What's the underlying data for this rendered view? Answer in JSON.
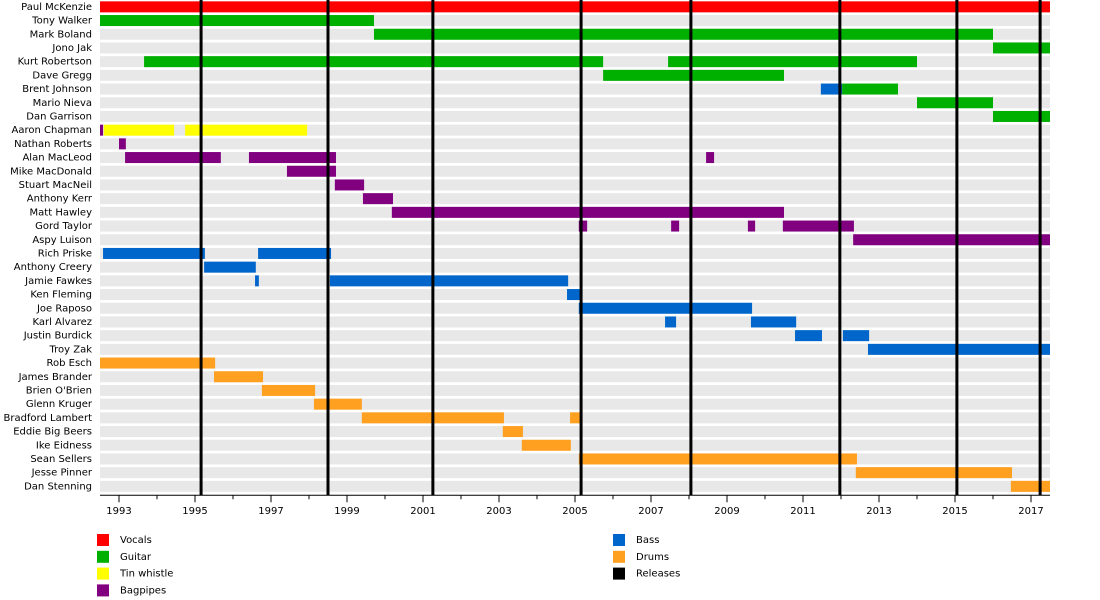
{
  "chart_data": {
    "type": "timeline",
    "xlim": [
      1992.5,
      2017.5
    ],
    "xticks": [
      1993,
      1995,
      1997,
      1999,
      2001,
      2003,
      2005,
      2007,
      2009,
      2011,
      2013,
      2015,
      2017
    ],
    "roles": [
      {
        "name": "Vocals",
        "color": "#ff0000"
      },
      {
        "name": "Guitar",
        "color": "#00b000"
      },
      {
        "name": "Tin whistle",
        "color": "#ffff00"
      },
      {
        "name": "Bagpipes",
        "color": "#800080"
      },
      {
        "name": "Bass",
        "color": "#0066cc"
      },
      {
        "name": "Drums",
        "color": "#ffa020"
      }
    ],
    "releases": {
      "name": "Releases",
      "color": "#000000",
      "x": [
        1995.16,
        1998.5,
        2001.26,
        2005.16,
        2008.05,
        2011.97,
        2015.05,
        2017.24
      ]
    },
    "members": [
      {
        "name": "Paul McKenzie",
        "spans": [
          {
            "role": "Vocals",
            "start": 1992.5,
            "end": 2017.5
          }
        ]
      },
      {
        "name": "Tony Walker",
        "spans": [
          {
            "role": "Guitar",
            "start": 1992.5,
            "end": 1999.71
          }
        ]
      },
      {
        "name": "Mark Boland",
        "spans": [
          {
            "role": "Guitar",
            "start": 1999.71,
            "end": 2016.0
          }
        ]
      },
      {
        "name": "Jono Jak",
        "spans": [
          {
            "role": "Guitar",
            "start": 2016.0,
            "end": 2017.5
          }
        ]
      },
      {
        "name": "Kurt Robertson",
        "spans": [
          {
            "role": "Guitar",
            "start": 1993.66,
            "end": 2005.74
          },
          {
            "role": "Guitar",
            "start": 2007.45,
            "end": 2014.0
          }
        ]
      },
      {
        "name": "Dave Gregg",
        "spans": [
          {
            "role": "Guitar",
            "start": 2005.74,
            "end": 2010.5
          }
        ]
      },
      {
        "name": "Brent Johnson",
        "spans": [
          {
            "role": "Bass",
            "start": 2011.47,
            "end": 2012.03
          },
          {
            "role": "Guitar",
            "start": 2012.03,
            "end": 2013.5
          }
        ]
      },
      {
        "name": "Mario Nieva",
        "spans": [
          {
            "role": "Guitar",
            "start": 2014.0,
            "end": 2016.0
          }
        ]
      },
      {
        "name": "Dan Garrison",
        "spans": [
          {
            "role": "Guitar",
            "start": 2016.0,
            "end": 2017.5
          }
        ]
      },
      {
        "name": "Aaron Chapman",
        "spans": [
          {
            "role": "Bagpipes",
            "start": 1992.5,
            "end": 1992.58
          },
          {
            "role": "Tin whistle",
            "start": 1992.6,
            "end": 1994.45
          },
          {
            "role": "Tin whistle",
            "start": 1994.74,
            "end": 1997.95
          }
        ]
      },
      {
        "name": "Nathan Roberts",
        "spans": [
          {
            "role": "Bagpipes",
            "start": 1993.0,
            "end": 1993.18
          }
        ]
      },
      {
        "name": "Alan MacLeod",
        "spans": [
          {
            "role": "Bagpipes",
            "start": 1993.16,
            "end": 1995.68
          },
          {
            "role": "Bagpipes",
            "start": 1996.42,
            "end": 1998.71
          },
          {
            "role": "Bagpipes",
            "start": 2008.45,
            "end": 2008.66
          }
        ]
      },
      {
        "name": "Mike MacDonald",
        "spans": [
          {
            "role": "Bagpipes",
            "start": 1997.42,
            "end": 1998.71
          }
        ]
      },
      {
        "name": "Stuart MacNeil",
        "spans": [
          {
            "role": "Bagpipes",
            "start": 1998.68,
            "end": 1999.45
          }
        ]
      },
      {
        "name": "Anthony Kerr",
        "spans": [
          {
            "role": "Bagpipes",
            "start": 1999.42,
            "end": 2000.21
          }
        ]
      },
      {
        "name": "Matt Hawley",
        "spans": [
          {
            "role": "Bagpipes",
            "start": 2000.18,
            "end": 2010.5
          }
        ]
      },
      {
        "name": "Gord Taylor",
        "spans": [
          {
            "role": "Bagpipes",
            "start": 2005.1,
            "end": 2005.32
          },
          {
            "role": "Bagpipes",
            "start": 2007.53,
            "end": 2007.74
          },
          {
            "role": "Bagpipes",
            "start": 2009.55,
            "end": 2009.74
          },
          {
            "role": "Bagpipes",
            "start": 2010.47,
            "end": 2012.34
          }
        ]
      },
      {
        "name": "Aspy Luison",
        "spans": [
          {
            "role": "Bagpipes",
            "start": 2012.32,
            "end": 2017.5
          }
        ]
      },
      {
        "name": "Rich Priske",
        "spans": [
          {
            "role": "Bass",
            "start": 1992.58,
            "end": 1995.26
          },
          {
            "role": "Bass",
            "start": 1996.66,
            "end": 1998.58
          }
        ]
      },
      {
        "name": "Anthony Creery",
        "spans": [
          {
            "role": "Bass",
            "start": 1995.24,
            "end": 1996.6
          }
        ]
      },
      {
        "name": "Jamie Fawkes",
        "spans": [
          {
            "role": "Bass",
            "start": 1996.58,
            "end": 1996.68
          },
          {
            "role": "Bass",
            "start": 1998.55,
            "end": 2004.82
          }
        ]
      },
      {
        "name": "Ken Fleming",
        "spans": [
          {
            "role": "Bass",
            "start": 2004.79,
            "end": 2005.13
          }
        ]
      },
      {
        "name": "Joe Raposo",
        "spans": [
          {
            "role": "Bass",
            "start": 2005.1,
            "end": 2009.66
          }
        ]
      },
      {
        "name": "Karl Alvarez",
        "spans": [
          {
            "role": "Bass",
            "start": 2007.37,
            "end": 2007.66
          },
          {
            "role": "Bass",
            "start": 2009.63,
            "end": 2010.82
          }
        ]
      },
      {
        "name": "Justin Burdick",
        "spans": [
          {
            "role": "Bass",
            "start": 2010.79,
            "end": 2011.5
          },
          {
            "role": "Bass",
            "start": 2012.05,
            "end": 2012.74
          }
        ]
      },
      {
        "name": "Troy Zak",
        "spans": [
          {
            "role": "Bass",
            "start": 2012.71,
            "end": 2017.5
          }
        ]
      },
      {
        "name": "Rob Esch",
        "spans": [
          {
            "role": "Drums",
            "start": 1992.5,
            "end": 1995.53
          }
        ]
      },
      {
        "name": "James Brander",
        "spans": [
          {
            "role": "Drums",
            "start": 1995.5,
            "end": 1996.79
          }
        ]
      },
      {
        "name": "Brien O'Brien",
        "spans": [
          {
            "role": "Drums",
            "start": 1996.76,
            "end": 1998.16
          }
        ]
      },
      {
        "name": "Glenn Kruger",
        "spans": [
          {
            "role": "Drums",
            "start": 1998.13,
            "end": 1999.39
          }
        ]
      },
      {
        "name": "Bradford Lambert",
        "spans": [
          {
            "role": "Drums",
            "start": 1999.39,
            "end": 2003.13
          },
          {
            "role": "Drums",
            "start": 2004.87,
            "end": 2005.13
          }
        ]
      },
      {
        "name": "Eddie Big Beers",
        "spans": [
          {
            "role": "Drums",
            "start": 2003.1,
            "end": 2003.63
          }
        ]
      },
      {
        "name": "Ike Eidness",
        "spans": [
          {
            "role": "Drums",
            "start": 2003.6,
            "end": 2004.89
          }
        ]
      },
      {
        "name": "Sean Sellers",
        "spans": [
          {
            "role": "Drums",
            "start": 2005.1,
            "end": 2012.42
          }
        ]
      },
      {
        "name": "Jesse Pinner",
        "spans": [
          {
            "role": "Drums",
            "start": 2012.39,
            "end": 2016.5
          }
        ]
      },
      {
        "name": "Dan Stenning",
        "spans": [
          {
            "role": "Drums",
            "start": 2016.47,
            "end": 2017.5
          }
        ]
      }
    ]
  }
}
